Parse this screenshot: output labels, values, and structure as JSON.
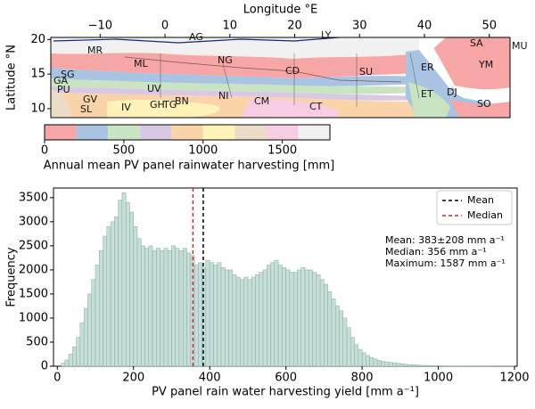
{
  "chart_data": [
    {
      "type": "map",
      "x_label": "Longitude °E",
      "y_label": "Latitude °N",
      "xlim": [
        -17.6,
        53.2
      ],
      "ylim": [
        8.7,
        20.3
      ],
      "xticks": [
        {
          "value": -10,
          "label": "−10"
        },
        0,
        10,
        20,
        30,
        40,
        50
      ],
      "yticks": [
        10,
        15,
        20
      ],
      "country_labels": [
        "MR",
        "AG",
        "LY",
        "SA",
        "MU",
        "ML",
        "NG",
        "CD",
        "SU",
        "ER",
        "YM",
        "SG",
        "GA",
        "PU",
        "GV",
        "SL",
        "IV",
        "UV",
        "GH",
        "TG",
        "BN",
        "NI",
        "CM",
        "CT",
        "ET",
        "DJ",
        "SO"
      ],
      "colorbar_label": "Annual mean PV panel rainwater harvesting [mm]",
      "colorbar_boundaries": [
        0,
        200,
        400,
        600,
        800,
        1000,
        1200,
        1400,
        1600,
        1800
      ],
      "colorbar_colors": [
        "#f6a6a4",
        "#a9c3e2",
        "#c8e4c0",
        "#d9c8e4",
        "#fbd3a8",
        "#fff3ba",
        "#ebdcc8",
        "#f8cce3",
        "#f1f1f1"
      ],
      "colorbar_ticks": [
        0,
        500,
        1000,
        1500
      ]
    },
    {
      "type": "histogram",
      "x_label": "PV panel rain water harvesting yield [mm a⁻¹]",
      "y_label": "Frequency",
      "xlim": [
        -10,
        1207
      ],
      "ylim": [
        0,
        3700
      ],
      "xticks": [
        0,
        200,
        400,
        600,
        800,
        1000,
        1200
      ],
      "yticks": [
        0,
        500,
        1000,
        1500,
        2000,
        2500,
        3000,
        3500
      ],
      "color": "#c6ded8",
      "edge_color": "#86aba2",
      "bins": [
        0,
        10,
        20,
        30,
        40,
        50,
        60,
        70,
        80,
        90,
        100,
        110,
        120,
        130,
        140,
        150,
        160,
        170,
        180,
        190,
        200,
        210,
        220,
        230,
        240,
        250,
        260,
        270,
        280,
        290,
        300,
        310,
        320,
        330,
        340,
        350,
        360,
        370,
        380,
        390,
        400,
        410,
        420,
        430,
        440,
        450,
        460,
        470,
        480,
        490,
        500,
        510,
        520,
        530,
        540,
        550,
        560,
        570,
        580,
        590,
        600,
        610,
        620,
        630,
        640,
        650,
        660,
        670,
        680,
        690,
        700,
        710,
        720,
        730,
        740,
        750,
        760,
        770,
        780,
        790,
        800,
        810,
        820,
        830,
        840,
        850,
        860,
        870,
        880,
        890,
        900,
        910,
        920,
        930,
        940,
        950,
        960,
        970,
        980,
        990,
        1000,
        1010,
        1020,
        1030,
        1040,
        1050,
        1060,
        1070,
        1080,
        1090,
        1100,
        1110,
        1120,
        1130,
        1140,
        1150,
        1160,
        1170,
        1180,
        1190,
        1200
      ],
      "counts": [
        0,
        60,
        130,
        250,
        400,
        600,
        900,
        1200,
        1500,
        1800,
        2100,
        2400,
        2700,
        2900,
        3000,
        3100,
        3450,
        3600,
        3400,
        3200,
        2900,
        2650,
        2500,
        2450,
        2500,
        2400,
        2450,
        2400,
        2450,
        2400,
        2500,
        2450,
        2400,
        2450,
        2350,
        2300,
        2100,
        2150,
        2050,
        2200,
        2150,
        2100,
        2150,
        2050,
        2000,
        2000,
        1900,
        1850,
        1800,
        1850,
        1800,
        1850,
        1900,
        1950,
        2000,
        2100,
        2150,
        2200,
        2100,
        2050,
        2000,
        1950,
        1950,
        2000,
        2050,
        2000,
        2000,
        1950,
        1900,
        1800,
        1700,
        1550,
        1400,
        1250,
        1150,
        1000,
        800,
        600,
        450,
        350,
        280,
        220,
        180,
        150,
        120,
        100,
        90,
        80,
        70,
        60,
        50,
        40,
        35,
        30,
        25,
        20,
        18,
        15,
        12,
        10,
        8,
        7,
        6,
        5,
        5,
        4,
        4,
        3,
        3,
        3,
        2,
        2,
        2,
        2,
        1,
        1,
        1,
        1,
        1,
        1
      ],
      "lines": [
        {
          "name": "Mean",
          "value": 383,
          "color": "#000000"
        },
        {
          "name": "Median",
          "value": 356,
          "color": "#d62728"
        }
      ],
      "legend": "upper right",
      "annotations": [
        "Mean: 383±208 mm a⁻¹",
        "Median: 356 mm a⁻¹",
        "Maximum: 1587 mm a⁻¹"
      ]
    }
  ]
}
